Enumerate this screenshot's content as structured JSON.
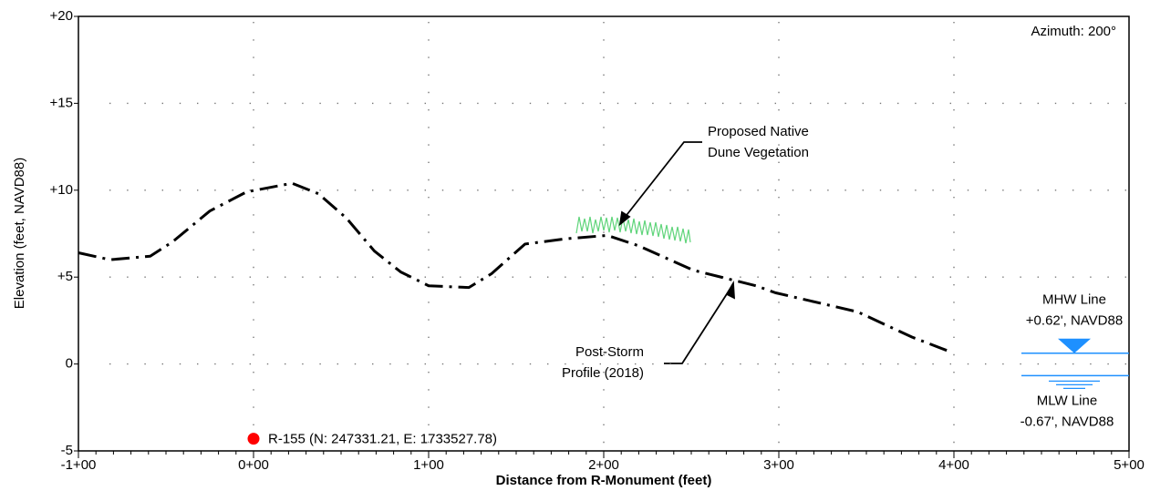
{
  "chart_data": {
    "type": "line",
    "azimuth": "Azimuth: 200°",
    "x_label": "Distance from R-Monument (feet)",
    "y_label": "Elevation (feet, NAVD88)",
    "xlim": [
      -100,
      500
    ],
    "ylim": [
      -5,
      20
    ],
    "xticks": [
      {
        "value": -100,
        "label": "-1+00"
      },
      {
        "value": 0,
        "label": "0+00"
      },
      {
        "value": 100,
        "label": "1+00"
      },
      {
        "value": 200,
        "label": "2+00"
      },
      {
        "value": 300,
        "label": "3+00"
      },
      {
        "value": 400,
        "label": "4+00"
      },
      {
        "value": 500,
        "label": "5+00"
      }
    ],
    "yticks": [
      -5,
      0,
      {
        "value": 5,
        "label": "+5"
      },
      {
        "value": 10,
        "label": "+10"
      },
      {
        "value": 15,
        "label": "+15"
      },
      {
        "value": 20,
        "label": "+20"
      }
    ],
    "grid": true,
    "series": [
      {
        "name": "Post-Storm Profile (2018)",
        "color": "#000000",
        "x": [
          -100,
          -82,
          -59,
          -46,
          -25,
          -4,
          22,
          37,
          53,
          69,
          84,
          100,
          123,
          136,
          155,
          178,
          202,
          220,
          251,
          287,
          298,
          345,
          376,
          398
        ],
        "values": [
          6.4,
          6.0,
          6.2,
          7.05,
          8.8,
          9.9,
          10.4,
          9.8,
          8.4,
          6.5,
          5.3,
          4.5,
          4.4,
          5.2,
          6.9,
          7.2,
          7.4,
          6.8,
          5.4,
          4.5,
          4.1,
          3.0,
          1.55,
          0.7
        ]
      }
    ],
    "profile_label": [
      "Post-Storm",
      "Profile (2018)"
    ],
    "vegetation_label": [
      "Proposed Native",
      "Dune Vegetation"
    ],
    "monument": {
      "label": "R-155 (N: 247331.21, E: 1733527.78)",
      "x": 0,
      "y": -4.3,
      "color": "#ff0000"
    },
    "mhw": {
      "name": "MHW Line",
      "label": "+0.62', NAVD88",
      "value": 0.62
    },
    "mlw": {
      "name": "MLW Line",
      "label": "-0.67', NAVD88",
      "value": -0.67
    },
    "water_color": "#1e90ff"
  }
}
